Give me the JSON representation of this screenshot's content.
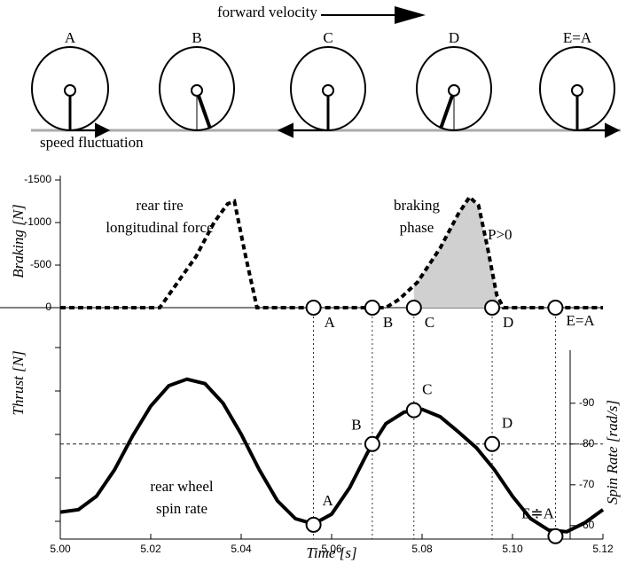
{
  "diagram": {
    "forward_label": "forward velocity",
    "fluctuation_label": "speed fluctuation",
    "wheels": [
      "A",
      "B",
      "C",
      "D",
      "E=A"
    ]
  },
  "chart_data": {
    "type": "line",
    "xlabel": "Time [s]",
    "ylabel": "Braking [N]",
    "ylabel_lower": "Thrust [N]",
    "y2label": "Spin Rate [rad/s]",
    "xlim": [
      5.0,
      5.12
    ],
    "xticks": [
      {
        "value": 5.0,
        "label": "5.00"
      },
      {
        "value": 5.02,
        "label": "5.02"
      },
      {
        "value": 5.04,
        "label": "5.04"
      },
      {
        "value": 5.06,
        "label": "5.06"
      },
      {
        "value": 5.08,
        "label": "5.08"
      },
      {
        "value": 5.1,
        "label": "5.10"
      },
      {
        "value": 5.12,
        "label": "5.12"
      }
    ],
    "ylim": [
      0,
      -1500
    ],
    "yticks": [
      -1500,
      -1000,
      -500,
      0
    ],
    "y2lim": [
      -56.7,
      -103
    ],
    "y2ticks": [
      -90,
      -80,
      -70,
      -60
    ],
    "series": [
      {
        "label": [
          "rear tire",
          "longitudinal force"
        ],
        "color": "#000000",
        "style": "dashed",
        "x": [
          5.0,
          5.022,
          5.026,
          5.03,
          5.034,
          5.037,
          5.0385,
          5.041,
          5.0435,
          5.072,
          5.075,
          5.079,
          5.084,
          5.088,
          5.0905,
          5.0925,
          5.0945,
          5.0965,
          5.098,
          5.12
        ],
        "values": [
          0,
          0,
          -300,
          -600,
          -1000,
          -1220,
          -1250,
          -600,
          0,
          0,
          -100,
          -300,
          -700,
          -1100,
          -1300,
          -1200,
          -700,
          -150,
          0,
          0
        ]
      },
      {
        "label": [
          "rear wheel",
          "spin rate"
        ],
        "color": "#000000",
        "style": "solid",
        "axis": "y2",
        "x": [
          5.0,
          5.004,
          5.008,
          5.012,
          5.016,
          5.02,
          5.024,
          5.028,
          5.032,
          5.036,
          5.04,
          5.044,
          5.048,
          5.052,
          5.056,
          5.06,
          5.064,
          5.068,
          5.072,
          5.076,
          5.08,
          5.084,
          5.088,
          5.092,
          5.096,
          5.1,
          5.104,
          5.108,
          5.112,
          5.116,
          5.12
        ],
        "values": [
          -63.3,
          -63.9,
          -67.2,
          -73.7,
          -82.0,
          -89.3,
          -94.3,
          -95.9,
          -94.8,
          -90.0,
          -82.4,
          -73.7,
          -66.1,
          -61.7,
          -60.4,
          -62.8,
          -69.3,
          -78.0,
          -85.0,
          -87.8,
          -88.5,
          -86.7,
          -83.0,
          -79.1,
          -73.7,
          -67.2,
          -61.7,
          -58.9,
          -58.5,
          -60.7,
          -63.9
        ]
      }
    ],
    "shade": [
      5.0782,
      5.0965
    ],
    "shade_color": "#d0d0d0",
    "shade_label": [
      "braking",
      "phase"
    ],
    "power_label": "P>0",
    "reference_y2": -80,
    "events": [
      {
        "x": 5.056,
        "label": "A",
        "spin": -60.2,
        "spin_label": "A"
      },
      {
        "x": 5.069,
        "label": "B",
        "spin": -80,
        "spin_label": "B"
      },
      {
        "x": 5.0782,
        "label": "C",
        "spin": -88.3,
        "spin_label": "C"
      },
      {
        "x": 5.0955,
        "label": "D",
        "spin": -80,
        "spin_label": "D"
      },
      {
        "x": 5.1095,
        "label": "E=A",
        "spin": -57.4,
        "spin_label": "E≑A"
      }
    ]
  }
}
